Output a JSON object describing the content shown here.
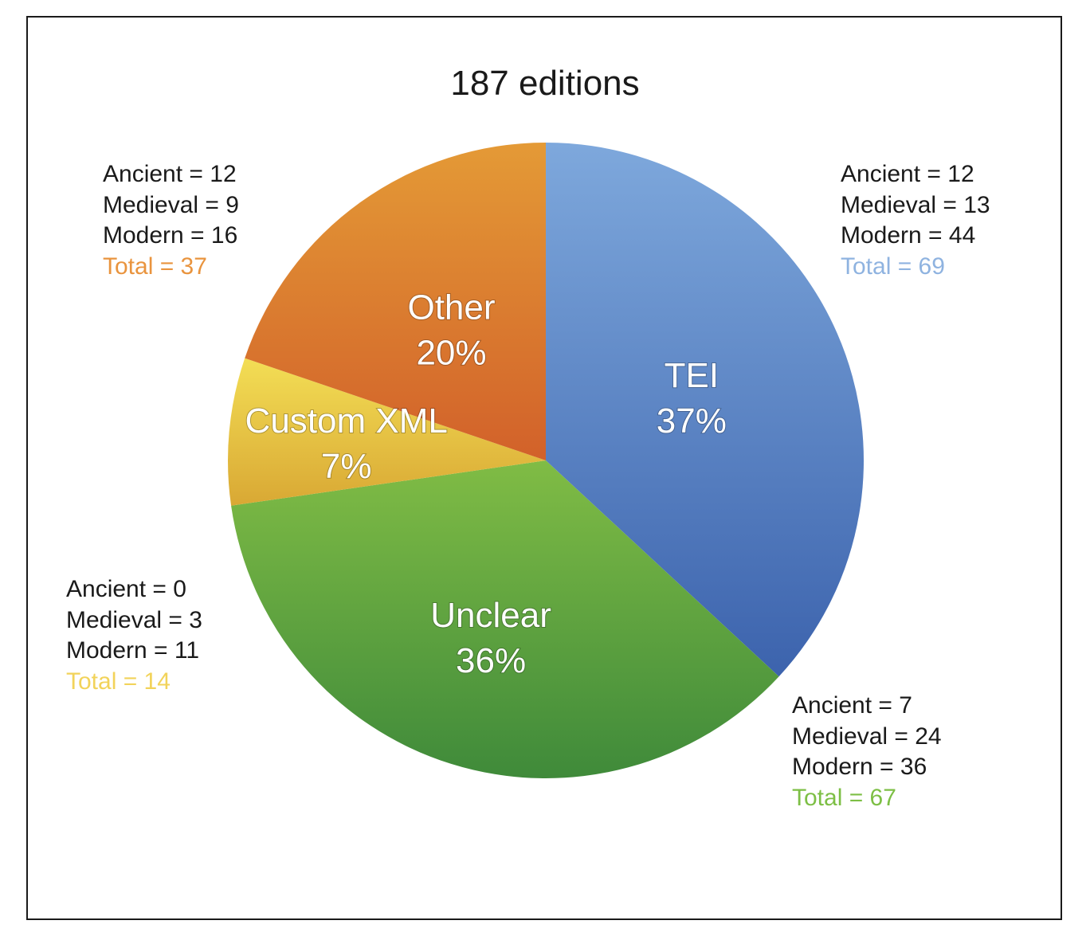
{
  "chart_data": {
    "type": "pie",
    "title": "187 editions",
    "slices": [
      {
        "label": "TEI",
        "percent_label": "37%",
        "value": 69,
        "color": "#4f7fc4",
        "details": {
          "ancient": "Ancient = 12",
          "medieval": "Medieval = 13",
          "modern": "Modern = 44",
          "total": "Total = 69"
        }
      },
      {
        "label": "Unclear",
        "percent_label": "36%",
        "value": 67,
        "color": "#6aad3f",
        "details": {
          "ancient": "Ancient = 7",
          "medieval": "Medieval = 24",
          "modern": "Modern = 36",
          "total": "Total = 67"
        }
      },
      {
        "label": "Custom XML",
        "percent_label": "7%",
        "value": 14,
        "color": "#ead04a",
        "details": {
          "ancient": "Ancient = 0",
          "medieval": "Medieval = 3",
          "modern": "Modern = 11",
          "total": "Total = 14"
        }
      },
      {
        "label": "Other",
        "percent_label": "20%",
        "value": 37,
        "color": "#df7b2e",
        "details": {
          "ancient": "Ancient = 12",
          "medieval": "Medieval = 9",
          "modern": "Modern = 16",
          "total": "Total = 37"
        }
      }
    ],
    "total_colors": {
      "TEI": "#8fb3e0",
      "Unclear": "#7dbf45",
      "Custom XML": "#f2d35a",
      "Other": "#e9943e"
    }
  }
}
